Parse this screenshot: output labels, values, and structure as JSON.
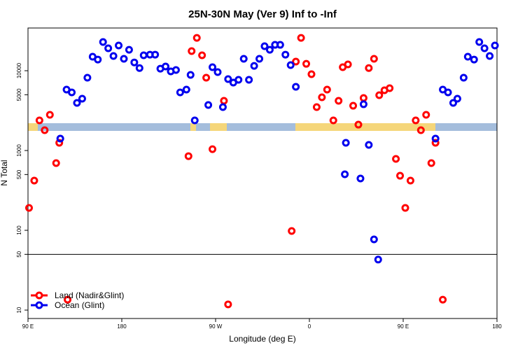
{
  "chart_data": {
    "type": "scatter",
    "title": "25N-30N May (Ver 9)   Inf to -Inf",
    "x_label": "Longitude (deg E)",
    "y_label": "N Total",
    "log_y": true,
    "xlim": [
      90,
      540
    ],
    "ylim": [
      7.85,
      34300
    ],
    "xticks": [
      {
        "value": 90,
        "label": "90 E"
      },
      {
        "value": 180,
        "label": "180"
      },
      {
        "value": 270,
        "label": "90 W"
      },
      {
        "value": 360,
        "label": "0"
      },
      {
        "value": 450,
        "label": "90 E"
      },
      {
        "value": 540,
        "label": "180"
      }
    ],
    "yticks": [
      10,
      50,
      100,
      500,
      1000,
      5000,
      10000
    ],
    "hline": 50,
    "legend": "lower left",
    "series": [
      {
        "name": "Land (Nadir&Glint)",
        "color": "#ff0000",
        "x": [
          91,
          96,
          101,
          106,
          111,
          117,
          120,
          128,
          244,
          247,
          252,
          257,
          261,
          267,
          278,
          282,
          343,
          347,
          352,
          357,
          362,
          367,
          372,
          377,
          383,
          388,
          392,
          397,
          402,
          407,
          412,
          417,
          422,
          427,
          432,
          437,
          443,
          447,
          452,
          457,
          462,
          467,
          472,
          477,
          481,
          488
        ],
        "values": [
          191,
          420,
          2385,
          1796,
          2800,
          695,
          1250,
          13.5,
          850,
          17600,
          25800,
          15600,
          8170,
          1040,
          4200,
          11.8,
          98,
          13000,
          25800,
          12200,
          9040,
          3500,
          4640,
          5800,
          2385,
          4200,
          11060,
          12000,
          3640,
          2110,
          4550,
          10800,
          14100,
          4930,
          5680,
          6040,
          785,
          483,
          191,
          420,
          2385,
          1796,
          2800,
          695,
          1250,
          13.5
        ]
      },
      {
        "name": "Ocean (Glint)",
        "color": "#0000ee",
        "x": [
          121,
          127,
          132,
          137,
          142,
          147,
          152,
          157,
          162,
          167,
          172,
          177,
          182,
          187,
          192,
          197,
          201,
          207,
          212,
          217,
          222,
          227,
          232,
          236,
          242,
          246,
          250,
          263,
          267,
          272,
          277,
          282,
          287,
          292,
          297,
          302,
          307,
          312,
          317,
          322,
          327,
          332,
          337,
          342,
          347,
          394,
          395,
          409,
          412,
          417,
          422,
          426,
          481,
          488,
          493,
          498,
          502,
          508,
          512,
          518,
          523,
          528,
          533,
          538
        ],
        "values": [
          1410,
          5800,
          5350,
          3950,
          4460,
          8170,
          14970,
          13800,
          22900,
          19100,
          15300,
          20700,
          14100,
          18300,
          12700,
          10800,
          15600,
          15900,
          15900,
          10600,
          11300,
          9800,
          10200,
          5350,
          5800,
          8860,
          2385,
          3720,
          11060,
          9600,
          3500,
          7850,
          7100,
          7690,
          14100,
          7690,
          11500,
          14100,
          20300,
          18300,
          21100,
          21100,
          15900,
          11750,
          6290,
          503,
          1250,
          446,
          3800,
          1175,
          77,
          43,
          1410,
          5800,
          5350,
          3950,
          4460,
          8170,
          14970,
          13800,
          22900,
          19100,
          15300,
          20700
        ]
      }
    ]
  }
}
